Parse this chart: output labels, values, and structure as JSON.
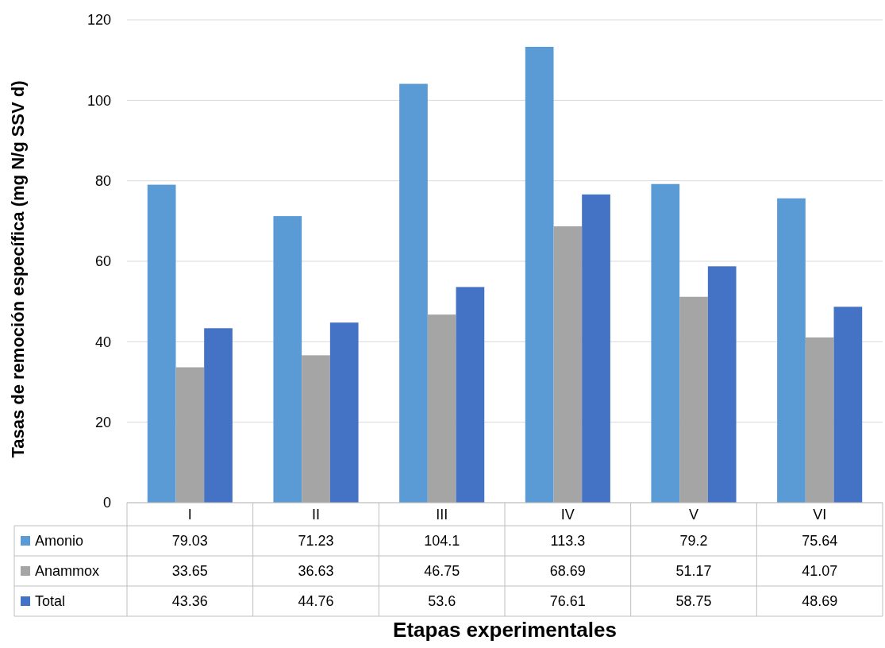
{
  "chart_data": {
    "type": "bar",
    "xlabel": "Etapas experimentales",
    "ylabel": "Tasas de remoción específica (mg N/g SSV d)",
    "categories": [
      "I",
      "II",
      "III",
      "IV",
      "V",
      "VI"
    ],
    "series": [
      {
        "name": "Amonio",
        "color": "#5b9bd5",
        "values": [
          79.03,
          71.23,
          104.1,
          113.3,
          79.2,
          75.64
        ]
      },
      {
        "name": "Anammox",
        "color": "#a5a5a5",
        "values": [
          33.65,
          36.63,
          46.75,
          68.69,
          51.17,
          41.07
        ]
      },
      {
        "name": "Total",
        "color": "#4472c4",
        "values": [
          43.36,
          44.76,
          53.6,
          76.61,
          58.75,
          48.69
        ]
      }
    ],
    "ylim": [
      0,
      120
    ],
    "yticks": [
      0,
      20,
      40,
      60,
      80,
      100,
      120
    ],
    "grid": "y",
    "data_labels": true,
    "legend": "bottom"
  }
}
